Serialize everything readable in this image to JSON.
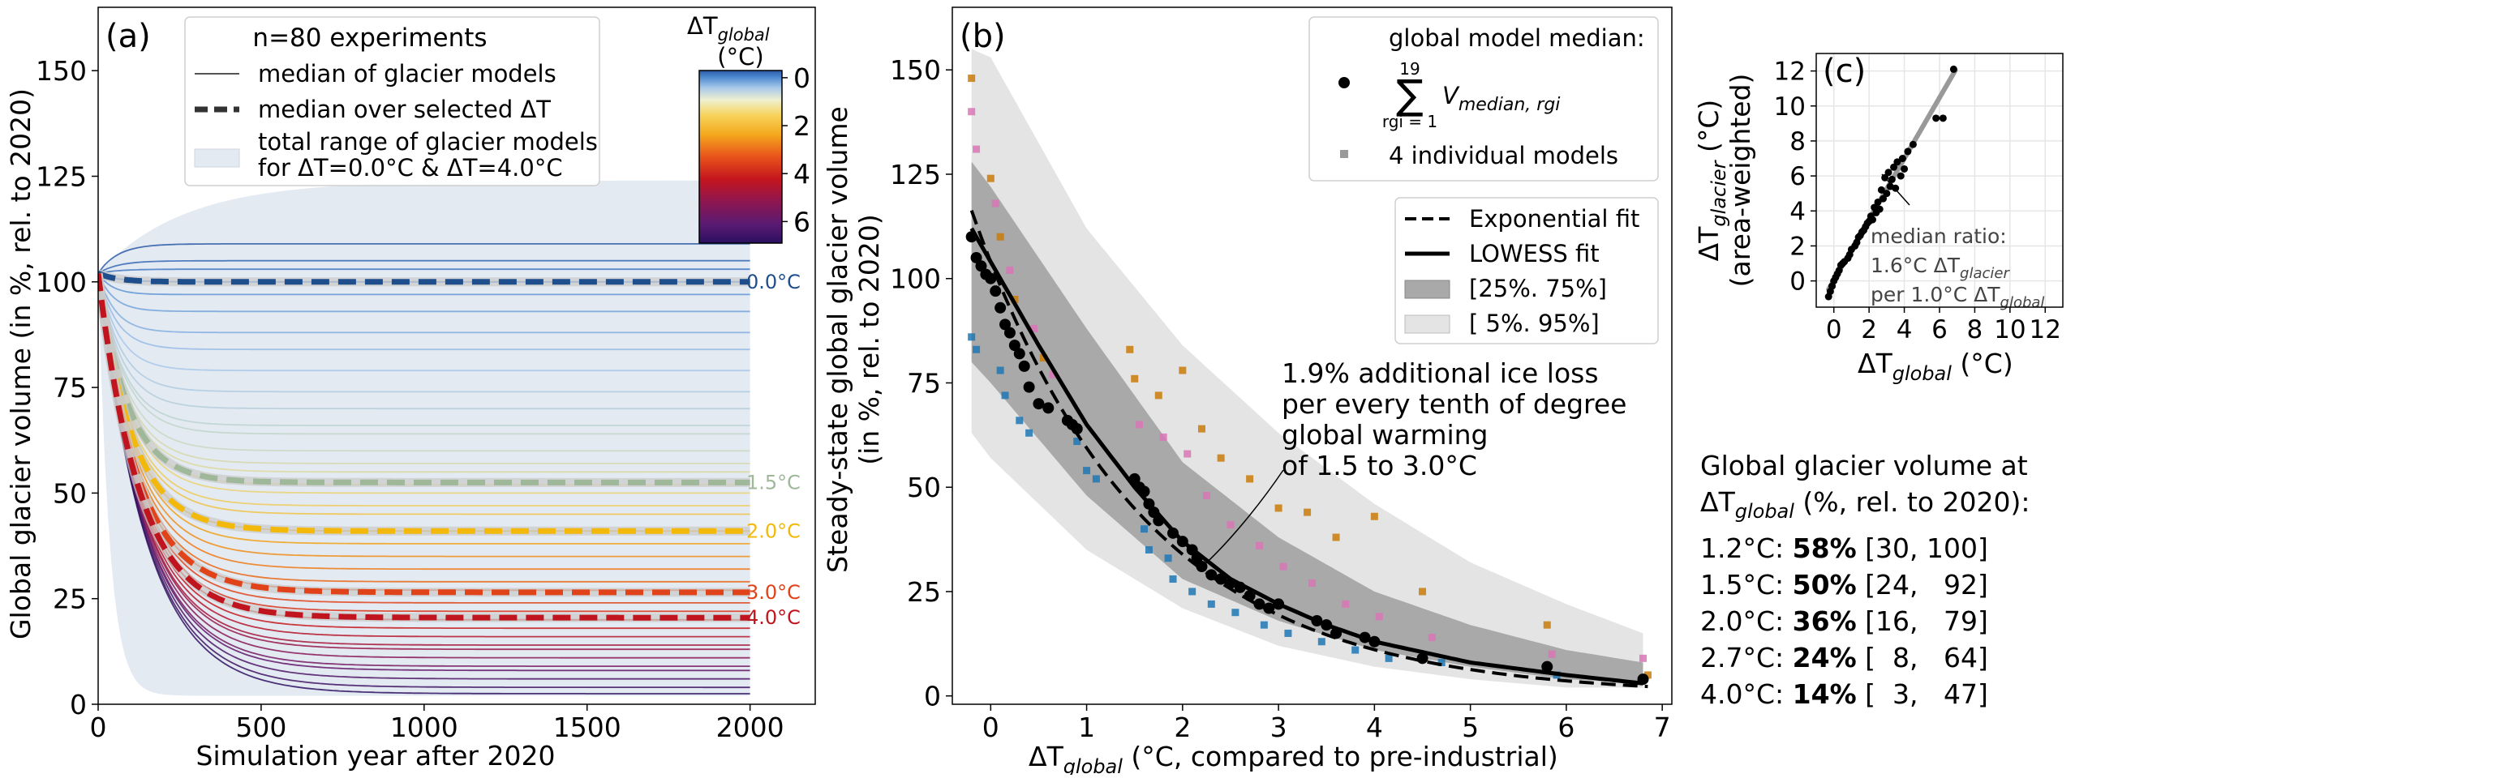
{
  "chart_data": [
    {
      "type": "line",
      "panel_label": "(a)",
      "xlabel": "Simulation year after 2020",
      "ylabel": "Global glacier volume (in %, rel. to 2020)",
      "xlim": [
        0,
        2200
      ],
      "ylim": [
        0,
        165
      ],
      "xticks": [
        0,
        500,
        1000,
        1500,
        2000
      ],
      "yticks": [
        0,
        25,
        50,
        75,
        100,
        125,
        150
      ],
      "legend": {
        "title": "n=80 experiments",
        "entries": [
          "median of glacier models",
          "median over selected ΔT",
          "total range of glacier models",
          "for ΔT=0.0°C & ΔT=4.0°C"
        ]
      },
      "colorbar": {
        "title": "ΔT",
        "title_sub": "global",
        "unit": "(°C)",
        "ticks": [
          "0",
          "2",
          "4",
          "6"
        ],
        "range": [
          -0.3,
          6.9
        ]
      },
      "selected_medians": [
        {
          "label": "0.0°C",
          "dT": 0.0,
          "end": 100,
          "color": "#1f4e8c"
        },
        {
          "label": "1.5°C",
          "dT": 1.5,
          "end": 52.5,
          "color": "#9fb89a"
        },
        {
          "label": "2.0°C",
          "dT": 2.0,
          "end": 41,
          "color": "#f2b90c"
        },
        {
          "label": "3.0°C",
          "dT": 3.0,
          "end": 26.5,
          "color": "#e0431a"
        },
        {
          "label": "4.0°C",
          "dT": 4.0,
          "end": 20.5,
          "color": "#c0141f"
        }
      ],
      "median_curves": [
        {
          "dT": -0.3,
          "end": 109
        },
        {
          "dT": -0.2,
          "end": 105
        },
        {
          "dT": -0.1,
          "end": 103
        },
        {
          "dT": 0.0,
          "end": 100
        },
        {
          "dT": 0.1,
          "end": 97
        },
        {
          "dT": 0.2,
          "end": 93
        },
        {
          "dT": 0.3,
          "end": 88
        },
        {
          "dT": 0.4,
          "end": 84
        },
        {
          "dT": 0.5,
          "end": 79
        },
        {
          "dT": 0.6,
          "end": 74
        },
        {
          "dT": 0.7,
          "end": 70
        },
        {
          "dT": 0.8,
          "end": 66
        },
        {
          "dT": 0.9,
          "end": 64
        },
        {
          "dT": 1.0,
          "end": 60
        },
        {
          "dT": 1.2,
          "end": 57
        },
        {
          "dT": 1.3,
          "end": 55
        },
        {
          "dT": 1.5,
          "end": 52
        },
        {
          "dT": 1.6,
          "end": 50
        },
        {
          "dT": 1.7,
          "end": 47
        },
        {
          "dT": 1.8,
          "end": 45
        },
        {
          "dT": 2.0,
          "end": 41
        },
        {
          "dT": 2.2,
          "end": 38
        },
        {
          "dT": 2.4,
          "end": 35
        },
        {
          "dT": 2.6,
          "end": 32
        },
        {
          "dT": 2.8,
          "end": 29
        },
        {
          "dT": 3.0,
          "end": 27
        },
        {
          "dT": 3.2,
          "end": 24
        },
        {
          "dT": 3.4,
          "end": 22
        },
        {
          "dT": 3.6,
          "end": 20
        },
        {
          "dT": 3.9,
          "end": 18
        },
        {
          "dT": 4.2,
          "end": 16
        },
        {
          "dT": 4.5,
          "end": 14
        },
        {
          "dT": 4.8,
          "end": 13
        },
        {
          "dT": 5.1,
          "end": 11
        },
        {
          "dT": 5.4,
          "end": 9
        },
        {
          "dT": 5.8,
          "end": 8
        },
        {
          "dT": 6.2,
          "end": 6
        },
        {
          "dT": 6.5,
          "end": 4
        },
        {
          "dT": 6.8,
          "end": 2.5
        }
      ],
      "range_band": {
        "upper_end": 124,
        "lower_end": 2
      }
    },
    {
      "type": "scatter",
      "panel_label": "(b)",
      "xlabel_parts": [
        "ΔT",
        "global",
        " (°C, compared to pre-industrial)"
      ],
      "ylabel_lines": [
        "Steady-state global glacier volume",
        "(in %, rel. to 2020)"
      ],
      "xlim": [
        -0.4,
        7.1
      ],
      "ylim": [
        -2,
        165
      ],
      "xticks": [
        0,
        1,
        2,
        3,
        4,
        5,
        6,
        7
      ],
      "yticks": [
        0,
        25,
        50,
        75,
        100,
        125,
        150
      ],
      "legend_markers": {
        "title": "global model median:",
        "sum_sub": "rgi = 1",
        "sum_sup": "19",
        "sum_term": "V",
        "sum_term_sub": "median, rgi",
        "individual": "4 individual models"
      },
      "legend_lines": [
        "Exponential fit",
        "LOWESS fit",
        "[25%. 75%]",
        "[ 5%. 95%]"
      ],
      "annotation": [
        "1.9% additional ice loss",
        "per every tenth of degree",
        "global warming",
        "of 1.5 to 3.0°C"
      ],
      "fits": {
        "exponential": {
          "a": 104,
          "k": 0.56
        },
        "lowess": [
          [
            -0.2,
            112
          ],
          [
            0,
            104
          ],
          [
            0.5,
            84
          ],
          [
            1,
            65
          ],
          [
            1.5,
            50
          ],
          [
            2,
            37
          ],
          [
            2.5,
            28
          ],
          [
            3,
            22
          ],
          [
            3.5,
            17
          ],
          [
            4,
            13
          ],
          [
            5,
            8
          ],
          [
            6,
            5
          ],
          [
            6.8,
            3
          ]
        ]
      },
      "band_5_95": {
        "x": [
          -0.2,
          0,
          1,
          2,
          3,
          4,
          5,
          6,
          6.8
        ],
        "lower": [
          63,
          57,
          35,
          21,
          12,
          7,
          4,
          2,
          2
        ],
        "upper": [
          155,
          153,
          112,
          84,
          63,
          46,
          32,
          22,
          15
        ]
      },
      "band_25_75": {
        "x": [
          -0.2,
          0,
          1,
          2,
          3,
          4,
          5,
          6,
          6.8
        ],
        "lower": [
          80,
          75,
          48,
          28,
          18,
          11,
          7,
          4,
          3
        ],
        "upper": [
          128,
          122,
          88,
          56,
          38,
          25,
          17,
          11,
          8
        ]
      },
      "model_colors": [
        "#1f77b4",
        "#c97b08",
        "#d975b5",
        "#9a9a9a"
      ],
      "median_points": [
        [
          -0.2,
          110
        ],
        [
          -0.15,
          105
        ],
        [
          -0.1,
          103
        ],
        [
          -0.05,
          101
        ],
        [
          0.0,
          100
        ],
        [
          0.05,
          97
        ],
        [
          0.1,
          93
        ],
        [
          0.15,
          89
        ],
        [
          0.2,
          87
        ],
        [
          0.25,
          84
        ],
        [
          0.3,
          82
        ],
        [
          0.35,
          79
        ],
        [
          0.4,
          74
        ],
        [
          0.5,
          70
        ],
        [
          0.6,
          69
        ],
        [
          0.8,
          66
        ],
        [
          0.85,
          65
        ],
        [
          0.9,
          64
        ],
        [
          1.5,
          52
        ],
        [
          1.55,
          50
        ],
        [
          1.6,
          49
        ],
        [
          1.65,
          46
        ],
        [
          1.7,
          44
        ],
        [
          1.75,
          42
        ],
        [
          1.9,
          39
        ],
        [
          2.0,
          37
        ],
        [
          2.1,
          35
        ],
        [
          2.15,
          33
        ],
        [
          2.2,
          31
        ],
        [
          2.3,
          29
        ],
        [
          2.4,
          28
        ],
        [
          2.5,
          27
        ],
        [
          2.6,
          26
        ],
        [
          2.7,
          24
        ],
        [
          2.8,
          22
        ],
        [
          2.9,
          21
        ],
        [
          3.0,
          22
        ],
        [
          3.4,
          18
        ],
        [
          3.5,
          17
        ],
        [
          3.6,
          15
        ],
        [
          3.9,
          14
        ],
        [
          4.0,
          13
        ],
        [
          4.5,
          9
        ],
        [
          5.8,
          7
        ],
        [
          6.8,
          4
        ]
      ],
      "individual_points": [
        [
          -0.2,
          148,
          1
        ],
        [
          -0.2,
          140,
          2
        ],
        [
          -0.15,
          131,
          2
        ],
        [
          -0.2,
          86,
          0
        ],
        [
          -0.15,
          83,
          0
        ],
        [
          0.0,
          124,
          1
        ],
        [
          0.05,
          118,
          2
        ],
        [
          0.1,
          110,
          1
        ],
        [
          0.1,
          78,
          0
        ],
        [
          0.15,
          72,
          0
        ],
        [
          0.2,
          102,
          2
        ],
        [
          0.25,
          95,
          1
        ],
        [
          0.3,
          66,
          0
        ],
        [
          0.4,
          63,
          0
        ],
        [
          0.45,
          88,
          2
        ],
        [
          0.55,
          81,
          1
        ],
        [
          0.65,
          77,
          2
        ],
        [
          0.9,
          61,
          0
        ],
        [
          1.0,
          54,
          0
        ],
        [
          1.1,
          52,
          0
        ],
        [
          1.45,
          83,
          1
        ],
        [
          1.5,
          76,
          1
        ],
        [
          1.55,
          65,
          2
        ],
        [
          1.6,
          40,
          0
        ],
        [
          1.65,
          35,
          0
        ],
        [
          1.75,
          72,
          1
        ],
        [
          1.8,
          62,
          2
        ],
        [
          1.85,
          33,
          0
        ],
        [
          1.9,
          28,
          0
        ],
        [
          2.0,
          78,
          1
        ],
        [
          2.05,
          58,
          2
        ],
        [
          2.1,
          25,
          0
        ],
        [
          2.2,
          64,
          1
        ],
        [
          2.25,
          48,
          2
        ],
        [
          2.3,
          22,
          0
        ],
        [
          2.4,
          57,
          1
        ],
        [
          2.5,
          41,
          2
        ],
        [
          2.55,
          20,
          0
        ],
        [
          2.7,
          52,
          1
        ],
        [
          2.8,
          36,
          2
        ],
        [
          2.85,
          17,
          0
        ],
        [
          3.0,
          45,
          1
        ],
        [
          3.05,
          31,
          2
        ],
        [
          3.1,
          15,
          0
        ],
        [
          3.3,
          44,
          1
        ],
        [
          3.35,
          27,
          2
        ],
        [
          3.45,
          13,
          0
        ],
        [
          3.6,
          38,
          1
        ],
        [
          3.7,
          22,
          2
        ],
        [
          3.8,
          11,
          0
        ],
        [
          4.0,
          43,
          1
        ],
        [
          4.05,
          19,
          2
        ],
        [
          4.15,
          9,
          0
        ],
        [
          4.5,
          25,
          1
        ],
        [
          4.6,
          14,
          2
        ],
        [
          4.7,
          8,
          0
        ],
        [
          5.8,
          17,
          1
        ],
        [
          5.85,
          10,
          2
        ],
        [
          5.9,
          5,
          0
        ],
        [
          6.8,
          9,
          2
        ],
        [
          6.85,
          5,
          1
        ]
      ]
    },
    {
      "type": "scatter",
      "panel_label": "(c)",
      "xlabel_parts": [
        "ΔT",
        "global",
        " (°C)"
      ],
      "ylabel_lines_parts": [
        [
          "ΔT",
          "glacier",
          " (°C)"
        ],
        [
          "(area-weighted)",
          "",
          ""
        ]
      ],
      "xlim": [
        -1,
        13
      ],
      "ylim": [
        -1.5,
        13
      ],
      "xticks": [
        0,
        2,
        4,
        6,
        8,
        10,
        12
      ],
      "yticks": [
        0,
        2,
        4,
        6,
        8,
        10,
        12
      ],
      "annotation_parts": [
        [
          "median ratio:",
          ""
        ],
        [
          "1.6°C ΔT",
          "glacier"
        ],
        [
          "per 1.0°C ΔT",
          "global"
        ]
      ],
      "ratio": 1.6,
      "points": [
        [
          -0.3,
          -0.9
        ],
        [
          -0.2,
          -0.6
        ],
        [
          -0.1,
          -0.3
        ],
        [
          0.0,
          0.0
        ],
        [
          0.1,
          0.2
        ],
        [
          0.2,
          0.4
        ],
        [
          0.3,
          0.6
        ],
        [
          0.4,
          0.9
        ],
        [
          0.5,
          1.0
        ],
        [
          0.6,
          1.1
        ],
        [
          0.8,
          1.3
        ],
        [
          0.9,
          1.5
        ],
        [
          1.0,
          1.8
        ],
        [
          1.2,
          2.0
        ],
        [
          1.3,
          2.2
        ],
        [
          1.4,
          2.5
        ],
        [
          1.5,
          2.6
        ],
        [
          1.6,
          2.8
        ],
        [
          1.7,
          2.9
        ],
        [
          1.8,
          3.1
        ],
        [
          1.9,
          3.3
        ],
        [
          2.0,
          3.4
        ],
        [
          2.1,
          3.7
        ],
        [
          2.2,
          3.5
        ],
        [
          2.3,
          4.2
        ],
        [
          2.4,
          3.9
        ],
        [
          2.5,
          4.5
        ],
        [
          2.6,
          4.1
        ],
        [
          2.7,
          5.2
        ],
        [
          2.8,
          4.7
        ],
        [
          2.9,
          5.9
        ],
        [
          3.0,
          5.0
        ],
        [
          3.1,
          6.2
        ],
        [
          3.2,
          5.4
        ],
        [
          3.3,
          5.8
        ],
        [
          3.4,
          6.5
        ],
        [
          3.5,
          5.3
        ],
        [
          3.6,
          6.8
        ],
        [
          3.8,
          6.0
        ],
        [
          3.9,
          7.0
        ],
        [
          4.0,
          6.4
        ],
        [
          4.2,
          7.4
        ],
        [
          4.5,
          7.8
        ],
        [
          5.8,
          9.3
        ],
        [
          6.2,
          9.3
        ],
        [
          6.8,
          12.1
        ]
      ]
    }
  ],
  "summary": {
    "title": "Global glacier volume at",
    "subtitle_parts": [
      "ΔT",
      "global",
      " (%, rel. to 2020):"
    ],
    "rows": [
      {
        "temp": "1.2°C:",
        "value": "58%",
        "range": "[30, 100]"
      },
      {
        "temp": "1.5°C:",
        "value": "50%",
        "range": "[24,   92]"
      },
      {
        "temp": "2.0°C:",
        "value": "36%",
        "range": "[16,   79]"
      },
      {
        "temp": "2.7°C:",
        "value": "24%",
        "range": "[  8,   64]"
      },
      {
        "temp": "4.0°C:",
        "value": "14%",
        "range": "[  3,   47]"
      }
    ]
  }
}
